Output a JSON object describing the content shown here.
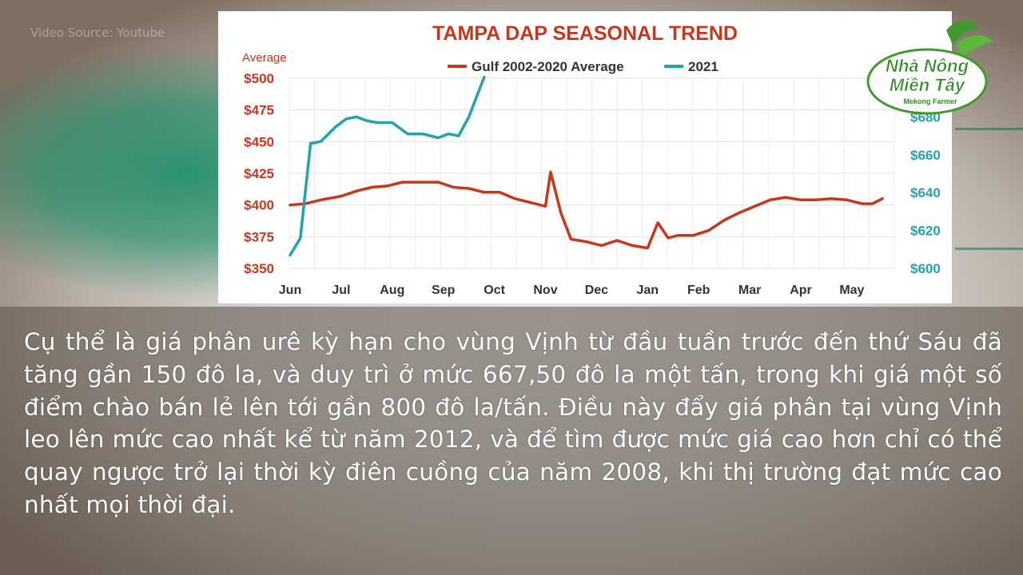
{
  "watermark": "Video Source: Youtube",
  "logo": {
    "line1": "Nhà Nông",
    "line2": "Miền Tây",
    "tagline": "Mekong Farmer"
  },
  "colors": {
    "gulf_series": "#c8361b",
    "y2021_series": "#23a3ab",
    "title": "#c8361b",
    "left_axis": "#c8361b",
    "right_axis": "#23a3ab"
  },
  "chart_data": {
    "type": "line",
    "title": "TAMPA DAP SEASONAL TREND",
    "ylabel_left": "Average",
    "legend_placement": "top",
    "grid": true,
    "x_ticks": [
      "Jun",
      "Jul",
      "Aug",
      "Sep",
      "Oct",
      "Nov",
      "Dec",
      "Jan",
      "Feb",
      "Mar",
      "Apr",
      "May"
    ],
    "x_range": [
      0,
      11.6
    ],
    "y_left": {
      "ticks": [
        "$500",
        "$475",
        "$450",
        "$425",
        "$400",
        "$375",
        "$350"
      ],
      "range": [
        350,
        500
      ]
    },
    "y_right": {
      "ticks": [
        "$680",
        "$660",
        "$640",
        "$620",
        "$600"
      ],
      "range": [
        600,
        700
      ]
    },
    "series": [
      {
        "name": "Gulf 2002-2020 Average",
        "axis": "left",
        "x": [
          0,
          0.3,
          0.6,
          1,
          1.3,
          1.6,
          1.9,
          2.2,
          2.5,
          2.9,
          3.2,
          3.5,
          3.8,
          4.1,
          4.4,
          4.8,
          5.0,
          5.1,
          5.3,
          5.5,
          5.8,
          6.1,
          6.4,
          6.7,
          7.0,
          7.2,
          7.4,
          7.6,
          7.9,
          8.2,
          8.5,
          8.8,
          9.1,
          9.4,
          9.7,
          10.0,
          10.3,
          10.6,
          10.9,
          11.2,
          11.4,
          11.6
        ],
        "y": [
          400,
          401,
          404,
          407,
          411,
          414,
          415,
          418,
          418,
          418,
          414,
          413,
          410,
          410,
          405,
          401,
          399,
          426,
          394,
          373,
          371,
          368,
          372,
          368,
          366,
          386,
          374,
          376,
          376,
          380,
          388,
          394,
          399,
          404,
          406,
          404,
          404,
          405,
          404,
          401,
          401,
          405
        ]
      },
      {
        "name": "2021",
        "axis": "right",
        "x": [
          0,
          0.2,
          0.4,
          0.6,
          0.9,
          1.1,
          1.3,
          1.5,
          1.7,
          2.0,
          2.3,
          2.6,
          2.9,
          3.1,
          3.3,
          3.5,
          3.8
        ],
        "y": [
          607,
          616,
          666,
          667,
          675,
          679,
          680,
          678,
          677,
          677,
          671,
          671,
          669,
          671,
          670,
          680,
          701
        ]
      }
    ]
  },
  "caption": "Cụ thể là giá phân urê kỳ hạn cho vùng Vịnh từ đầu tuần trước đến thứ Sáu đã tăng gần 150 đô la, và duy trì ở mức 667,50 đô la một tấn, trong khi giá một số điểm chào bán lẻ lên tới gần 800 đô la/tấn. Điều này đẩy giá phân tại vùng Vịnh leo lên mức cao nhất kể từ năm 2012, và để tìm được mức giá cao hơn chỉ có thể quay ngược trở lại thời kỳ điên cuồng của năm 2008, khi thị trường đạt mức cao nhất mọi thời đại."
}
